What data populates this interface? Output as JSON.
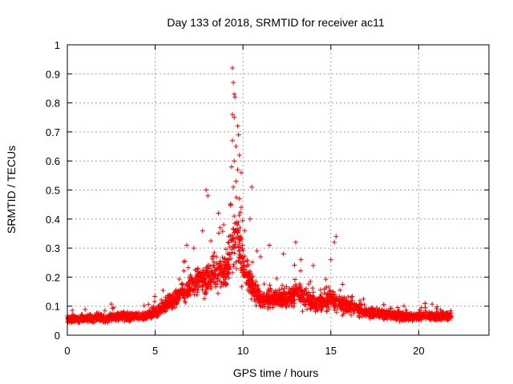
{
  "chart_data": {
    "type": "scatter",
    "title": "Day 133 of 2018, SRMTID for receiver ac11",
    "xlabel": "GPS time / hours",
    "ylabel": "SRMTID / TECUs",
    "xlim": [
      0,
      24
    ],
    "ylim": [
      0,
      1
    ],
    "xticks": [
      0,
      5,
      10,
      15,
      20
    ],
    "xtick_labels": [
      "0",
      "5",
      "10",
      "15",
      "20"
    ],
    "yticks": [
      0,
      0.1,
      0.2,
      0.3,
      0.4,
      0.5,
      0.6,
      0.7,
      0.8,
      0.9,
      1
    ],
    "ytick_labels": [
      "0",
      "0.1",
      "0.2",
      "0.3",
      "0.4",
      "0.5",
      "0.6",
      "0.7",
      "0.8",
      "0.9",
      "1"
    ],
    "grid": true,
    "marker": "+",
    "color": "#ff0000",
    "profile": [
      {
        "x": 0.0,
        "y": 0.055,
        "spread": 0.02
      },
      {
        "x": 2.0,
        "y": 0.06,
        "spread": 0.025
      },
      {
        "x": 3.0,
        "y": 0.065,
        "spread": 0.03
      },
      {
        "x": 4.5,
        "y": 0.065,
        "spread": 0.025
      },
      {
        "x": 5.0,
        "y": 0.08,
        "spread": 0.03
      },
      {
        "x": 6.0,
        "y": 0.12,
        "spread": 0.05
      },
      {
        "x": 7.0,
        "y": 0.17,
        "spread": 0.07
      },
      {
        "x": 8.0,
        "y": 0.2,
        "spread": 0.09
      },
      {
        "x": 9.0,
        "y": 0.22,
        "spread": 0.12
      },
      {
        "x": 9.6,
        "y": 0.35,
        "spread": 0.2
      },
      {
        "x": 10.2,
        "y": 0.2,
        "spread": 0.1
      },
      {
        "x": 11.0,
        "y": 0.12,
        "spread": 0.05
      },
      {
        "x": 12.5,
        "y": 0.13,
        "spread": 0.05
      },
      {
        "x": 13.0,
        "y": 0.15,
        "spread": 0.07
      },
      {
        "x": 14.0,
        "y": 0.11,
        "spread": 0.05
      },
      {
        "x": 15.0,
        "y": 0.12,
        "spread": 0.06
      },
      {
        "x": 16.0,
        "y": 0.1,
        "spread": 0.05
      },
      {
        "x": 17.0,
        "y": 0.08,
        "spread": 0.03
      },
      {
        "x": 19.0,
        "y": 0.065,
        "spread": 0.025
      },
      {
        "x": 21.8,
        "y": 0.065,
        "spread": 0.025
      }
    ],
    "x_range": [
      0,
      21.85
    ],
    "point_count": 2600,
    "outliers": [
      [
        9.4,
        0.92
      ],
      [
        9.45,
        0.87
      ],
      [
        9.5,
        0.83
      ],
      [
        9.55,
        0.82
      ],
      [
        9.4,
        0.76
      ],
      [
        9.5,
        0.75
      ],
      [
        9.7,
        0.72
      ],
      [
        9.75,
        0.69
      ],
      [
        9.4,
        0.67
      ],
      [
        9.6,
        0.65
      ],
      [
        9.8,
        0.62
      ],
      [
        9.5,
        0.6
      ],
      [
        9.35,
        0.58
      ],
      [
        9.7,
        0.57
      ],
      [
        9.9,
        0.56
      ],
      [
        9.6,
        0.53
      ],
      [
        9.45,
        0.51
      ],
      [
        10.5,
        0.51
      ],
      [
        7.9,
        0.5
      ],
      [
        8.0,
        0.48
      ],
      [
        9.8,
        0.47
      ],
      [
        9.3,
        0.45
      ],
      [
        9.9,
        0.44
      ],
      [
        8.6,
        0.42
      ],
      [
        9.5,
        0.41
      ],
      [
        10.4,
        0.4
      ],
      [
        8.9,
        0.38
      ],
      [
        8.7,
        0.37
      ],
      [
        7.7,
        0.36
      ],
      [
        10.1,
        0.36
      ],
      [
        9.2,
        0.34
      ],
      [
        15.3,
        0.34
      ],
      [
        15.2,
        0.32
      ],
      [
        13.0,
        0.32
      ],
      [
        11.5,
        0.31
      ],
      [
        12.3,
        0.28
      ],
      [
        10.8,
        0.29
      ],
      [
        15.0,
        0.26
      ],
      [
        6.8,
        0.31
      ],
      [
        7.2,
        0.3
      ],
      [
        14.0,
        0.24
      ],
      [
        13.3,
        0.26
      ],
      [
        11.0,
        0.27
      ]
    ]
  }
}
